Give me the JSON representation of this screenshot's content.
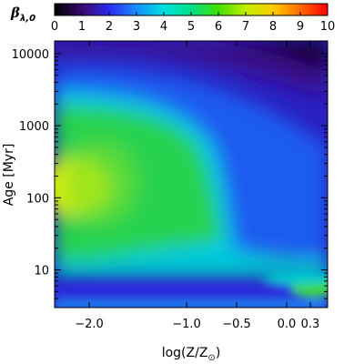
{
  "chart_data": {
    "type": "heatmap",
    "colorbar": {
      "label": "β",
      "label_subscript": "λ,0",
      "range": [
        0,
        10
      ],
      "ticks": [
        "0",
        "1",
        "2",
        "3",
        "4",
        "5",
        "6",
        "7",
        "8",
        "9",
        "10"
      ],
      "colormap": "rainbow (black-purple-blue-cyan-green-yellow-red)"
    },
    "x_axis": {
      "label": "log(Z/Z",
      "label_subscript": "⊙",
      "label_close": ")",
      "range": [
        -2.3,
        0.4
      ],
      "ticks": [
        {
          "value": -2.0,
          "label": "−2.0"
        },
        {
          "value": -1.0,
          "label": "−1.0"
        },
        {
          "value": -0.5,
          "label": "−0.5"
        },
        {
          "value": 0.0,
          "label": "0.0"
        },
        {
          "value": 0.3,
          "label": "0.3"
        }
      ],
      "scale": "nonuniform"
    },
    "y_axis": {
      "label": "Age [Myr]",
      "range": [
        3,
        15000
      ],
      "scale": "log",
      "ticks": [
        {
          "value": 10,
          "label": "10"
        },
        {
          "value": 100,
          "label": "100"
        },
        {
          "value": 1000,
          "label": "1000"
        },
        {
          "value": 10000,
          "label": "10000"
        }
      ]
    },
    "features": [
      {
        "description": "broad maximum of about 7 at low metallicity near 100 Myr"
      },
      {
        "description": "values drop sharply to about 2-3 for log(Z/Z⊙) above -0.5 and age above ~15 Myr"
      },
      {
        "description": "values decrease to about 0-1 at ages above 5000 Myr"
      },
      {
        "description": "narrow band of about 1 at ages near 4-5 Myr"
      },
      {
        "description": "secondary peak about 5 near 7 Myr at highest metallicity"
      }
    ]
  }
}
